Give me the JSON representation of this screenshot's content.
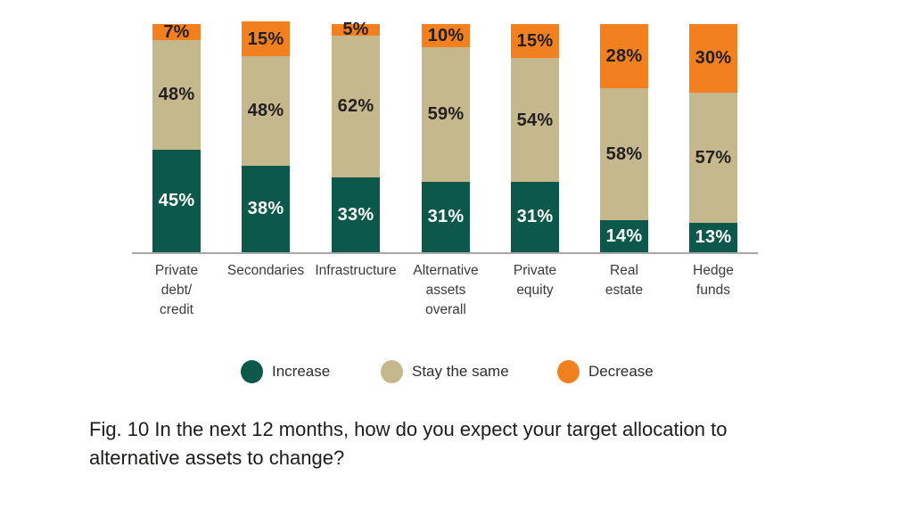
{
  "chart_data": {
    "type": "bar",
    "subtype": "stacked-vertical",
    "title": "",
    "xlabel": "",
    "ylabel": "",
    "value_suffix": "%",
    "ylim": [
      0,
      100
    ],
    "grid": false,
    "legend_position": "bottom",
    "categories": [
      "Private\ndebt/\ncredit",
      "Secondaries",
      "Infrastructure",
      "Alternative\nassets\noverall",
      "Private\nequity",
      "Real\nestate",
      "Hedge\nfunds"
    ],
    "series": [
      {
        "name": "Increase",
        "color": "#0c584a",
        "label_color": "#ffffff",
        "values": [
          45,
          38,
          33,
          31,
          31,
          14,
          13
        ]
      },
      {
        "name": "Stay the same",
        "color": "#c5b88c",
        "label_color": "#231f20",
        "values": [
          48,
          48,
          62,
          59,
          54,
          58,
          57
        ]
      },
      {
        "name": "Decrease",
        "color": "#f2801e",
        "label_color": "#231f20",
        "values": [
          7,
          15,
          5,
          10,
          15,
          28,
          30
        ]
      }
    ],
    "caption_lines": [
      "Fig. 10 In the next 12 months, how do you expect your target allocation to",
      "alternative assets to change?"
    ],
    "axis_color": "#a7a7a6"
  }
}
